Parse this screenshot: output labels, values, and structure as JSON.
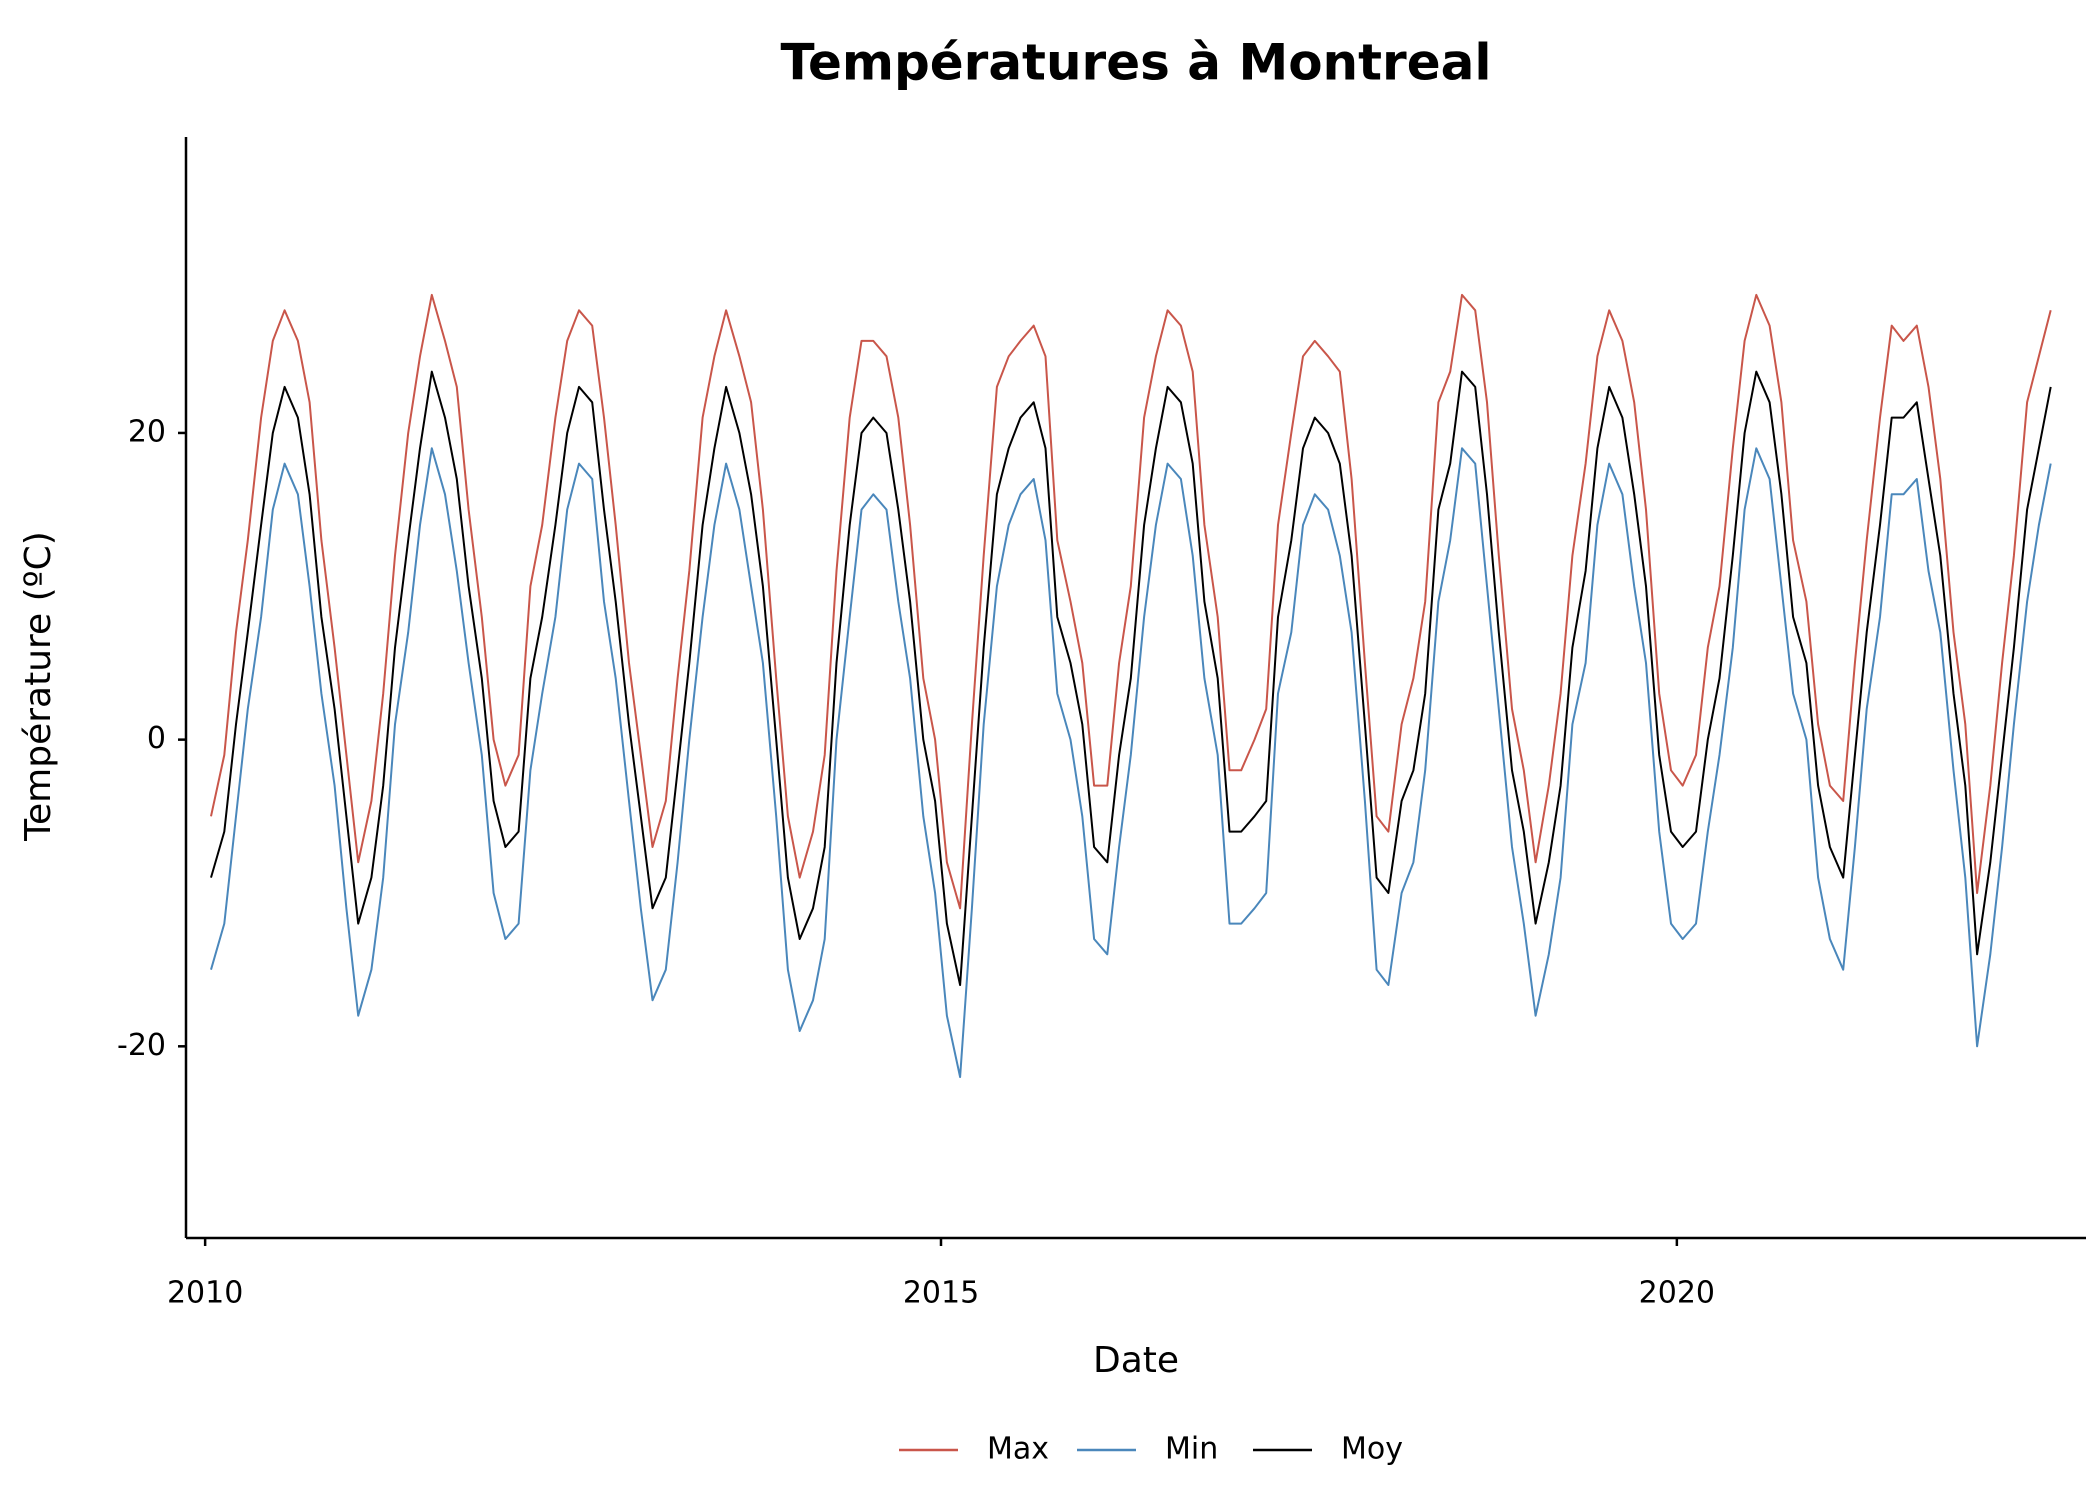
{
  "chart_data": {
    "type": "line",
    "title": "Températures à Montreal",
    "xlabel": "Date",
    "ylabel": "Température (ºC)",
    "xlim": [
      2009.87,
      2022.78
    ],
    "xticks": [
      2010,
      2015,
      2020
    ],
    "ylim": [
      -32.5,
      39.3
    ],
    "yticks": [
      -20,
      0,
      20
    ],
    "legend": "bottom",
    "x": [
      2010.04,
      2010.13,
      2010.21,
      2010.29,
      2010.38,
      2010.46,
      2010.54,
      2010.63,
      2010.71,
      2010.79,
      2010.88,
      2010.96,
      2011.04,
      2011.13,
      2011.21,
      2011.29,
      2011.38,
      2011.46,
      2011.54,
      2011.63,
      2011.71,
      2011.79,
      2011.88,
      2011.96,
      2012.04,
      2012.13,
      2012.21,
      2012.29,
      2012.38,
      2012.46,
      2012.54,
      2012.63,
      2012.71,
      2012.79,
      2012.88,
      2012.96,
      2013.04,
      2013.13,
      2013.21,
      2013.29,
      2013.38,
      2013.46,
      2013.54,
      2013.63,
      2013.71,
      2013.79,
      2013.88,
      2013.96,
      2014.04,
      2014.13,
      2014.21,
      2014.29,
      2014.38,
      2014.46,
      2014.54,
      2014.63,
      2014.71,
      2014.79,
      2014.88,
      2014.96,
      2015.04,
      2015.13,
      2015.21,
      2015.29,
      2015.38,
      2015.46,
      2015.54,
      2015.63,
      2015.71,
      2015.79,
      2015.88,
      2015.96,
      2016.04,
      2016.13,
      2016.21,
      2016.29,
      2016.38,
      2016.46,
      2016.54,
      2016.63,
      2016.71,
      2016.79,
      2016.88,
      2016.96,
      2017.04,
      2017.13,
      2017.21,
      2017.29,
      2017.38,
      2017.46,
      2017.54,
      2017.63,
      2017.71,
      2017.79,
      2017.88,
      2017.96,
      2018.04,
      2018.13,
      2018.21,
      2018.29,
      2018.38,
      2018.46,
      2018.54,
      2018.63,
      2018.71,
      2018.79,
      2018.88,
      2018.96,
      2019.04,
      2019.13,
      2019.21,
      2019.29,
      2019.38,
      2019.46,
      2019.54,
      2019.63,
      2019.71,
      2019.79,
      2019.88,
      2019.96,
      2020.04,
      2020.13,
      2020.21,
      2020.29,
      2020.38,
      2020.46,
      2020.54,
      2020.63,
      2020.71,
      2020.79,
      2020.88,
      2020.96,
      2021.04,
      2021.13,
      2021.21,
      2021.29,
      2021.38,
      2021.46,
      2021.54,
      2021.63,
      2021.71,
      2021.79,
      2021.88,
      2021.96,
      2022.04,
      2022.13,
      2022.21,
      2022.29,
      2022.38,
      2022.46,
      2022.54
    ],
    "series": [
      {
        "name": "Max",
        "color": "#c9564a",
        "values": [
          -5,
          -1,
          7,
          13,
          21,
          26,
          28,
          26,
          22,
          13,
          6,
          -1,
          -8,
          -4,
          3,
          12,
          20,
          25,
          29,
          26,
          23,
          15,
          8,
          0,
          -3,
          -1,
          10,
          14,
          21,
          26,
          28,
          27,
          21,
          14,
          5,
          -1,
          -7,
          -4,
          4,
          11,
          21,
          25,
          28,
          25,
          22,
          15,
          4,
          -5,
          -9,
          -6,
          -1,
          11,
          21,
          26,
          26,
          25,
          21,
          14,
          4,
          0,
          -8,
          -11,
          1,
          12,
          23,
          25,
          26,
          27,
          25,
          13,
          9,
          5,
          -3,
          -3,
          5,
          10,
          21,
          25,
          28,
          27,
          24,
          14,
          8,
          -2,
          -2,
          0,
          2,
          14,
          20,
          25,
          26,
          25,
          24,
          17,
          5,
          -5,
          -6,
          1,
          4,
          9,
          22,
          24,
          29,
          28,
          22,
          12,
          2,
          -2,
          -8,
          -3,
          3,
          12,
          18,
          25,
          28,
          26,
          22,
          15,
          3,
          -2,
          -3,
          -1,
          6,
          10,
          19,
          26,
          29,
          27,
          22,
          13,
          9,
          1,
          -3,
          -4,
          5,
          13,
          21,
          27,
          26,
          27,
          23,
          17,
          7,
          1,
          -10,
          -3,
          5,
          12,
          22,
          25,
          28
        ]
      },
      {
        "name": "Min",
        "color": "#4a87bb",
        "values": [
          -15,
          -12,
          -5,
          2,
          8,
          15,
          18,
          16,
          10,
          3,
          -3,
          -11,
          -18,
          -15,
          -9,
          1,
          7,
          14,
          19,
          16,
          11,
          5,
          -1,
          -10,
          -13,
          -12,
          -2,
          3,
          8,
          15,
          18,
          17,
          9,
          4,
          -4,
          -11,
          -17,
          -15,
          -8,
          0,
          8,
          14,
          18,
          15,
          10,
          5,
          -5,
          -15,
          -19,
          -17,
          -13,
          0,
          8,
          15,
          16,
          15,
          9,
          4,
          -5,
          -10,
          -18,
          -22,
          -11,
          1,
          10,
          14,
          16,
          17,
          13,
          3,
          0,
          -5,
          -13,
          -14,
          -7,
          -1,
          8,
          14,
          18,
          17,
          12,
          4,
          -1,
          -12,
          -12,
          -11,
          -10,
          3,
          7,
          14,
          16,
          15,
          12,
          7,
          -4,
          -15,
          -16,
          -10,
          -8,
          -2,
          9,
          13,
          19,
          18,
          10,
          2,
          -7,
          -12,
          -18,
          -14,
          -9,
          1,
          5,
          14,
          18,
          16,
          10,
          5,
          -6,
          -12,
          -13,
          -12,
          -6,
          -1,
          6,
          15,
          19,
          17,
          10,
          3,
          0,
          -9,
          -13,
          -15,
          -7,
          2,
          8,
          16,
          16,
          17,
          11,
          7,
          -2,
          -9,
          -20,
          -14,
          -7,
          1,
          9,
          14,
          18
        ]
      },
      {
        "name": "Moy",
        "color": "#000000",
        "values": [
          -9,
          -6,
          1,
          7,
          14,
          20,
          23,
          21,
          16,
          8,
          2,
          -5,
          -12,
          -9,
          -3,
          6,
          13,
          19,
          24,
          21,
          17,
          10,
          4,
          -4,
          -7,
          -6,
          4,
          8,
          14,
          20,
          23,
          22,
          15,
          9,
          1,
          -5,
          -11,
          -9,
          -2,
          5,
          14,
          19,
          23,
          20,
          16,
          10,
          0,
          -9,
          -13,
          -11,
          -7,
          5,
          14,
          20,
          21,
          20,
          15,
          9,
          0,
          -4,
          -12,
          -16,
          -5,
          6,
          16,
          19,
          21,
          22,
          19,
          8,
          5,
          1,
          -7,
          -8,
          -1,
          4,
          14,
          19,
          23,
          22,
          18,
          9,
          4,
          -6,
          -6,
          -5,
          -4,
          8,
          13,
          19,
          21,
          20,
          18,
          12,
          1,
          -9,
          -10,
          -4,
          -2,
          3,
          15,
          18,
          24,
          23,
          16,
          7,
          -2,
          -6,
          -12,
          -8,
          -3,
          6,
          11,
          19,
          23,
          21,
          16,
          10,
          -1,
          -6,
          -7,
          -6,
          0,
          4,
          12,
          20,
          24,
          22,
          16,
          8,
          5,
          -3,
          -7,
          -9,
          -1,
          7,
          14,
          21,
          21,
          22,
          17,
          12,
          3,
          -3,
          -14,
          -8,
          -1,
          6,
          15,
          19,
          23
        ]
      }
    ]
  }
}
